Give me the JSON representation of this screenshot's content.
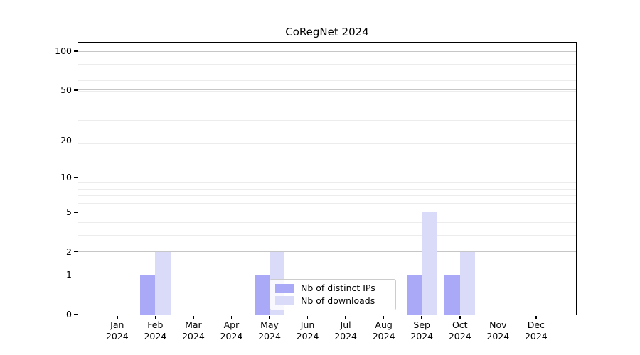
{
  "title": "CoRegNet 2024",
  "legend": {
    "items": [
      {
        "label": "Nb of distinct IPs",
        "color": "#a9a9f8"
      },
      {
        "label": "Nb of downloads",
        "color": "#dadaf9"
      }
    ]
  },
  "chart_data": {
    "type": "bar",
    "title": "CoRegNet 2024",
    "categories": [
      "Jan 2024",
      "Feb 2024",
      "Mar 2024",
      "Apr 2024",
      "May 2024",
      "Jun 2024",
      "Jul 2024",
      "Aug 2024",
      "Sep 2024",
      "Oct 2024",
      "Nov 2024",
      "Dec 2024"
    ],
    "series": [
      {
        "name": "Nb of distinct IPs",
        "color": "#a9a9f8",
        "values": [
          0,
          1,
          0,
          0,
          1,
          0,
          0,
          0,
          1,
          1,
          0,
          0
        ]
      },
      {
        "name": "Nb of downloads",
        "color": "#dadaf9",
        "values": [
          0,
          2,
          0,
          0,
          2,
          0,
          0,
          0,
          5,
          2,
          0,
          0
        ]
      }
    ],
    "xlabel": "",
    "ylabel": "",
    "yticks": [
      100,
      50,
      20,
      10,
      5,
      2,
      1,
      0
    ],
    "y_minor_ticks": [
      3,
      4,
      6,
      7,
      8,
      9,
      19,
      29,
      39,
      49,
      59,
      69,
      79,
      89
    ],
    "yscale": "log10(1+y)",
    "ylim": [
      0,
      116
    ],
    "grid": "horizontal major+minor",
    "legend_position": "inside lower-center"
  },
  "colors": {
    "background": "#ffffff",
    "spine": "#000000",
    "grid_major": "#c6c6c6",
    "grid_minor": "#ececec",
    "legend_border": "#cccccc",
    "text": "#000000"
  }
}
